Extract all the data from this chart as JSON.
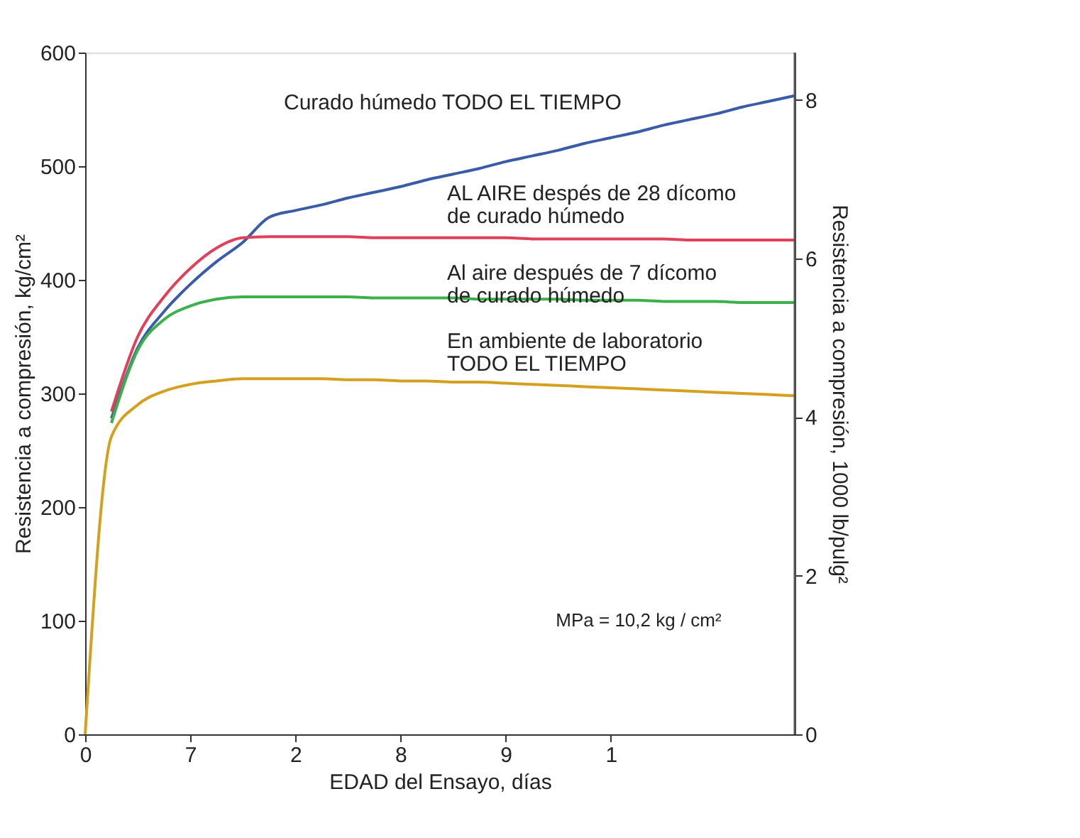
{
  "chart_data": {
    "type": "line",
    "xlabel": "EDAD del Ensayo, días",
    "ylabel": "Resistencia a compresión, kg/cm²",
    "y2label": "Resistencia a compresión, 1000 lb/pulg²",
    "categories": [
      "0",
      null,
      null,
      null,
      "7",
      null,
      null,
      null,
      "2",
      null,
      null,
      null,
      "8",
      null,
      null,
      null,
      "9",
      null,
      null,
      null,
      "1",
      null,
      null,
      null,
      null,
      null,
      null,
      null
    ],
    "ylim": [
      0,
      600
    ],
    "yticks": [
      0,
      100,
      200,
      300,
      400,
      500,
      600
    ],
    "y2lim": [
      0,
      8.6
    ],
    "y2ticks": [
      0,
      2,
      4,
      6,
      8
    ],
    "grid": false,
    "legend": false,
    "line_style": "solid",
    "series": [
      {
        "name": "Curado húmedo TODO EL TIEMPO",
        "color": "#3a5ca8",
        "values": [
          null,
          278,
          340,
          372,
          396,
          416,
          433,
          455,
          461,
          466,
          472,
          477,
          482,
          488,
          493,
          498,
          504,
          509,
          514,
          520,
          525,
          530,
          536,
          541,
          546,
          552,
          557,
          562
        ]
      },
      {
        "name": "AL AIRE despés de 28 dícomo\nde curado húmedo",
        "color": "#e0405a",
        "values": [
          null,
          284,
          350,
          385,
          410,
          428,
          437,
          438,
          438,
          438,
          438,
          437,
          437,
          437,
          437,
          437,
          437,
          436,
          436,
          436,
          436,
          436,
          436,
          435,
          435,
          435,
          435,
          435
        ]
      },
      {
        "name": "Al aire después de 7 dícomo\nde curado húmedo",
        "color": "#3cb04a",
        "values": [
          null,
          274,
          338,
          365,
          377,
          383,
          385,
          385,
          385,
          385,
          385,
          384,
          384,
          384,
          384,
          383,
          383,
          383,
          383,
          382,
          382,
          382,
          381,
          381,
          381,
          380,
          380,
          380
        ]
      },
      {
        "name": "En ambiente de laboratorio\nTODO EL TIEMPO",
        "color": "#d4a020",
        "values": [
          0,
          262,
          290,
          302,
          308,
          311,
          313,
          313,
          313,
          313,
          312,
          312,
          311,
          311,
          310,
          310,
          309,
          308,
          307,
          306,
          305,
          304,
          303,
          302,
          301,
          300,
          299,
          298
        ]
      }
    ],
    "annotations": [
      "MPa = 10,2 kg / cm²"
    ]
  }
}
